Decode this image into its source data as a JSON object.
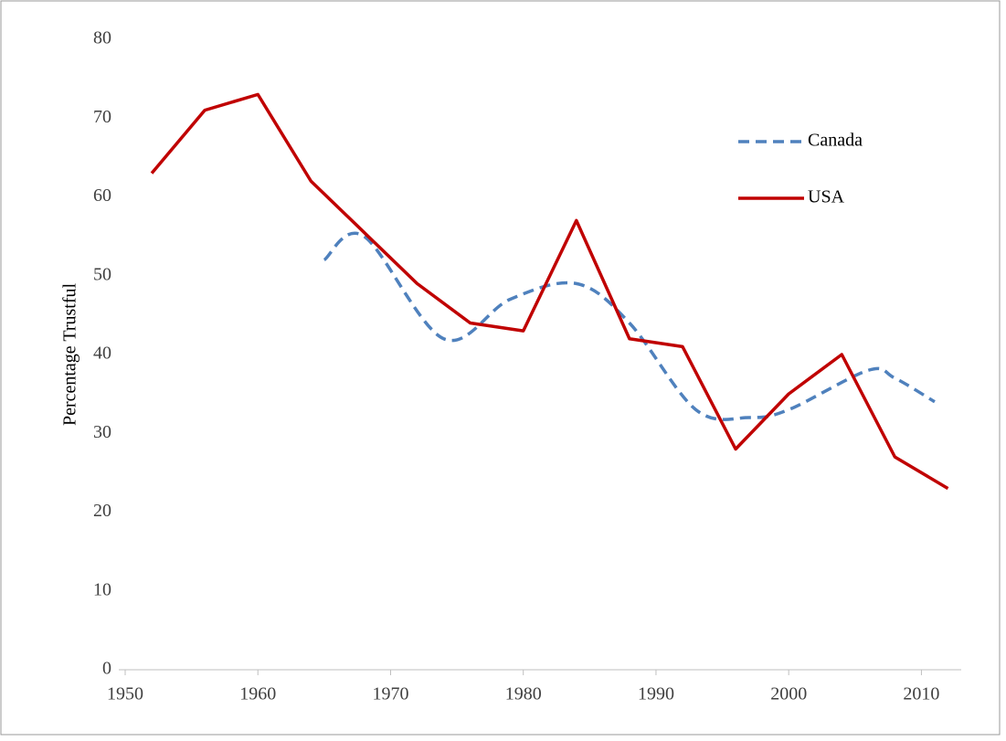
{
  "chart_data": {
    "type": "line",
    "ylabel": "Percentage Trustful",
    "xlim": [
      1950,
      2013
    ],
    "xticks": [
      1950,
      1960,
      1970,
      1980,
      1990,
      2000,
      2010
    ],
    "ylim": [
      0,
      80
    ],
    "yticks": [
      0,
      10,
      20,
      30,
      40,
      50,
      60,
      70,
      80
    ],
    "legend": "upper right",
    "series": [
      {
        "name": "Canada",
        "color": "#4f81bd",
        "dashed": true,
        "smooth": true,
        "x": [
          1965,
          1968,
          1974,
          1979,
          1984,
          1988,
          1993,
          1997,
          2000,
          2006,
          2008,
          2011
        ],
        "values": [
          52,
          55,
          42,
          47,
          49,
          44,
          33,
          32,
          33,
          38,
          37,
          34
        ]
      },
      {
        "name": "USA",
        "color": "#c00000",
        "dashed": false,
        "smooth": false,
        "x": [
          1952,
          1956,
          1960,
          1964,
          1968,
          1972,
          1976,
          1980,
          1984,
          1988,
          1992,
          1996,
          2000,
          2004,
          2008,
          2012
        ],
        "values": [
          63,
          71,
          73,
          62,
          55.5,
          49,
          44,
          43,
          57,
          42,
          41,
          28,
          35,
          40,
          27,
          23
        ]
      }
    ]
  }
}
